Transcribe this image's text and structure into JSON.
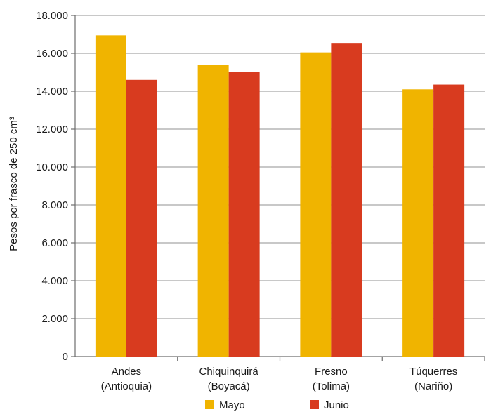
{
  "chart_data": {
    "type": "bar",
    "title": "",
    "xlabel": "",
    "ylabel": "Pesos por frasco de 250 cm³",
    "ylim": [
      0,
      18000
    ],
    "y_ticks": [
      0,
      2000,
      4000,
      6000,
      8000,
      10000,
      12000,
      14000,
      16000,
      18000
    ],
    "y_tick_labels": [
      "0",
      "2.000",
      "4.000",
      "6.000",
      "8.000",
      "10.000",
      "12.000",
      "14.000",
      "16.000",
      "18.000"
    ],
    "grid": true,
    "legend_position": "bottom-center",
    "categories": [
      [
        "Andes",
        "(Antioquia)"
      ],
      [
        "Chiquinquirá",
        "(Boyacá)"
      ],
      [
        "Fresno",
        "(Tolima)"
      ],
      [
        "Túquerres",
        "(Nariño)"
      ]
    ],
    "series": [
      {
        "name": "Mayo",
        "color": "#f0b400",
        "values": [
          16950,
          15400,
          16050,
          14100
        ]
      },
      {
        "name": "Junio",
        "color": "#d83b1f",
        "values": [
          14600,
          15000,
          16550,
          14350
        ]
      }
    ]
  }
}
